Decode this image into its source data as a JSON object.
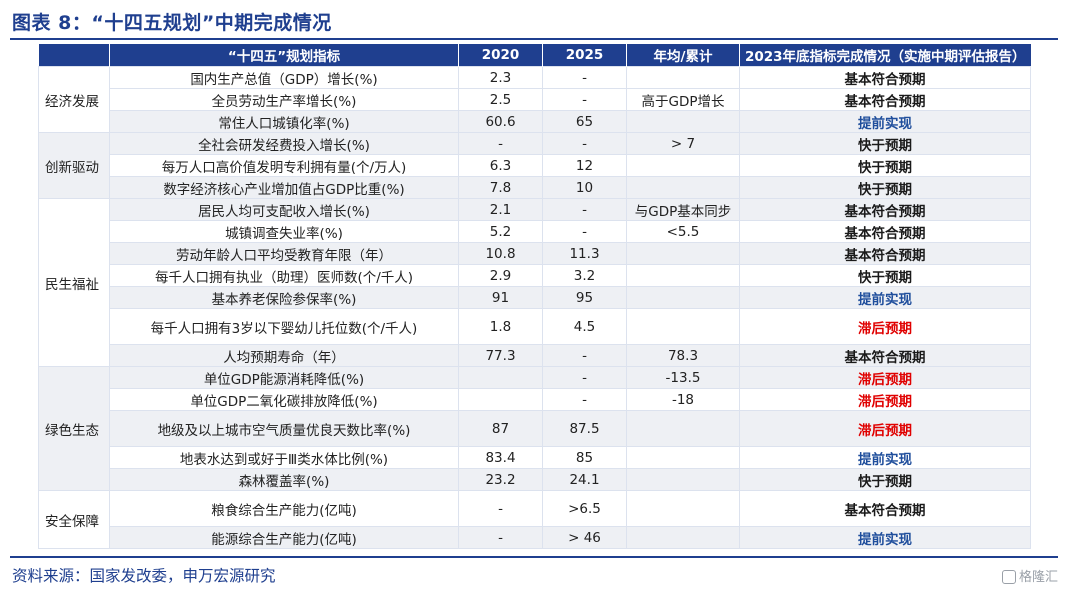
{
  "title": "图表 8：“十四五规划”中期完成情况",
  "headers": [
    "",
    "“十四五”规划指标",
    "2020",
    "2025",
    "年均/累计",
    "2023年底指标完成情况（实施中期评估报告）"
  ],
  "groups": [
    {
      "name": "经济发展",
      "rows": [
        {
          "indicator": "国内生产总值（GDP）增长(%)",
          "v2020": "2.3",
          "v2025": "-",
          "avg": "",
          "status": "基本符合预期",
          "kind": "meet"
        },
        {
          "indicator": "全员劳动生产率增长(%)",
          "v2020": "2.5",
          "v2025": "-",
          "avg": "高于GDP增长",
          "status": "基本符合预期",
          "kind": "meet"
        },
        {
          "indicator": "常住人口城镇化率(%)",
          "v2020": "60.6",
          "v2025": "65",
          "avg": "",
          "status": "提前实现",
          "kind": "early"
        }
      ]
    },
    {
      "name": "创新驱动",
      "rows": [
        {
          "indicator": "全社会研发经费投入增长(%)",
          "v2020": "-",
          "v2025": "-",
          "avg": "> 7",
          "status": "快于预期",
          "kind": "fast"
        },
        {
          "indicator": "每万人口高价值发明专利拥有量(个/万人)",
          "v2020": "6.3",
          "v2025": "12",
          "avg": "",
          "status": "快于预期",
          "kind": "fast"
        },
        {
          "indicator": "数字经济核心产业增加值占GDP比重(%)",
          "v2020": "7.8",
          "v2025": "10",
          "avg": "",
          "status": "快于预期",
          "kind": "fast"
        }
      ]
    },
    {
      "name": "民生福祉",
      "rows": [
        {
          "indicator": "居民人均可支配收入增长(%)",
          "v2020": "2.1",
          "v2025": "-",
          "avg": "与GDP基本同步",
          "status": "基本符合预期",
          "kind": "meet"
        },
        {
          "indicator": "城镇调查失业率(%)",
          "v2020": "5.2",
          "v2025": "-",
          "avg": "<5.5",
          "status": "基本符合预期",
          "kind": "meet"
        },
        {
          "indicator": "劳动年龄人口平均受教育年限（年）",
          "v2020": "10.8",
          "v2025": "11.3",
          "avg": "",
          "status": "基本符合预期",
          "kind": "meet"
        },
        {
          "indicator": "每千人口拥有执业（助理）医师数(个/千人)",
          "v2020": "2.9",
          "v2025": "3.2",
          "avg": "",
          "status": "快于预期",
          "kind": "fast"
        },
        {
          "indicator": "基本养老保险参保率(%)",
          "v2020": "91",
          "v2025": "95",
          "avg": "",
          "status": "提前实现",
          "kind": "early"
        },
        {
          "indicator": "每千人口拥有3岁以下婴幼儿托位数(个/千人)",
          "v2020": "1.8",
          "v2025": "4.5",
          "avg": "",
          "status": "滞后预期",
          "kind": "lag",
          "tall": true
        },
        {
          "indicator": "人均预期寿命（年）",
          "v2020": "77.3",
          "v2025": "-",
          "avg": "78.3",
          "status": "基本符合预期",
          "kind": "meet"
        }
      ]
    },
    {
      "name": "绿色生态",
      "rows": [
        {
          "indicator": "单位GDP能源消耗降低(%)",
          "v2020": "",
          "v2025": "-",
          "avg": "-13.5",
          "status": "滞后预期",
          "kind": "lag"
        },
        {
          "indicator": "单位GDP二氧化碳排放降低(%)",
          "v2020": "",
          "v2025": "-",
          "avg": "-18",
          "status": "滞后预期",
          "kind": "lag"
        },
        {
          "indicator": "地级及以上城市空气质量优良天数比率(%)",
          "v2020": "87",
          "v2025": "87.5",
          "avg": "",
          "status": "滞后预期",
          "kind": "lag",
          "tall": true
        },
        {
          "indicator": "地表水达到或好于Ⅲ类水体比例(%)",
          "v2020": "83.4",
          "v2025": "85",
          "avg": "",
          "status": "提前实现",
          "kind": "early"
        },
        {
          "indicator": "森林覆盖率(%)",
          "v2020": "23.2",
          "v2025": "24.1",
          "avg": "",
          "status": "快于预期",
          "kind": "fast"
        }
      ]
    },
    {
      "name": "安全保障",
      "rows": [
        {
          "indicator": "粮食综合生产能力(亿吨)",
          "v2020": "-",
          "v2025": ">6.5",
          "avg": "",
          "status": "基本符合预期",
          "kind": "meet",
          "tall": true
        },
        {
          "indicator": "能源综合生产能力(亿吨)",
          "v2020": "-",
          "v2025": "> 46",
          "avg": "",
          "status": "提前实现",
          "kind": "early"
        }
      ]
    }
  ],
  "source": "资料来源：国家发改委，申万宏源研究",
  "watermark": "格隆汇"
}
